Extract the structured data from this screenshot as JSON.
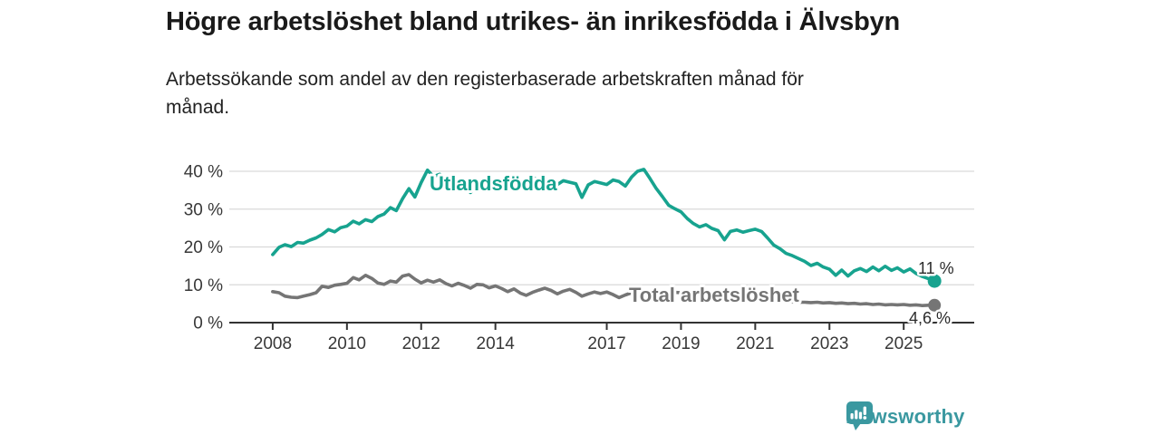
{
  "chart_data": {
    "type": "line",
    "title": "Högre arbetslöshet bland utrikes- än inrikesfödda i Älvsbyn",
    "subtitle_line1": "Arbetssökande som andel av den registerbaserade arbetskraften månad för",
    "subtitle_line2": "månad.",
    "xlabel": "",
    "ylabel": "",
    "grid": "horizontal",
    "grid_color": "#d9d9d9",
    "axis_color": "#333333",
    "xlim": [
      2006.83,
      2026.9
    ],
    "ylim": [
      0,
      40
    ],
    "x_ticks": [
      2008,
      2010,
      2012,
      2014,
      2017,
      2019,
      2021,
      2023,
      2025
    ],
    "y_ticks": [
      0,
      10,
      20,
      30,
      40
    ],
    "y_tick_suffix": " %",
    "series": [
      {
        "name": "Utlandsfödda",
        "color": "#17a38f",
        "end_label": "11 %",
        "end_value": 11,
        "points": [
          [
            2008.0,
            18.0
          ],
          [
            2008.17,
            19.9
          ],
          [
            2008.33,
            20.6
          ],
          [
            2008.5,
            20.1
          ],
          [
            2008.67,
            21.2
          ],
          [
            2008.83,
            21.0
          ],
          [
            2009.0,
            21.8
          ],
          [
            2009.17,
            22.4
          ],
          [
            2009.33,
            23.3
          ],
          [
            2009.5,
            24.6
          ],
          [
            2009.67,
            24.0
          ],
          [
            2009.83,
            25.1
          ],
          [
            2010.0,
            25.5
          ],
          [
            2010.17,
            26.8
          ],
          [
            2010.33,
            26.1
          ],
          [
            2010.5,
            27.2
          ],
          [
            2010.67,
            26.7
          ],
          [
            2010.83,
            28.0
          ],
          [
            2011.0,
            28.7
          ],
          [
            2011.17,
            30.4
          ],
          [
            2011.33,
            29.6
          ],
          [
            2011.5,
            32.8
          ],
          [
            2011.67,
            35.4
          ],
          [
            2011.83,
            33.2
          ],
          [
            2012.0,
            37.0
          ],
          [
            2012.17,
            40.3
          ],
          [
            2012.33,
            38.6
          ],
          [
            2012.5,
            39.2
          ],
          [
            2012.67,
            37.5
          ],
          [
            2012.83,
            38.2
          ],
          [
            2013.0,
            37.1
          ],
          [
            2013.17,
            35.9
          ],
          [
            2013.33,
            34.4
          ],
          [
            2013.5,
            36.2
          ],
          [
            2013.67,
            36.7
          ],
          [
            2013.83,
            35.9
          ],
          [
            2014.0,
            36.5
          ],
          [
            2014.17,
            35.7
          ],
          [
            2014.33,
            36.3
          ],
          [
            2014.5,
            35.9
          ],
          [
            2014.67,
            36.9
          ],
          [
            2014.83,
            37.9
          ],
          [
            2015.0,
            38.4
          ],
          [
            2015.17,
            37.7
          ],
          [
            2015.33,
            38.1
          ],
          [
            2015.5,
            37.3
          ],
          [
            2015.67,
            36.5
          ],
          [
            2015.83,
            37.5
          ],
          [
            2016.0,
            37.1
          ],
          [
            2016.17,
            36.7
          ],
          [
            2016.33,
            33.1
          ],
          [
            2016.5,
            36.4
          ],
          [
            2016.67,
            37.3
          ],
          [
            2016.83,
            36.9
          ],
          [
            2017.0,
            36.5
          ],
          [
            2017.17,
            37.7
          ],
          [
            2017.33,
            37.3
          ],
          [
            2017.5,
            36.1
          ],
          [
            2017.67,
            38.5
          ],
          [
            2017.83,
            40.0
          ],
          [
            2018.0,
            40.5
          ],
          [
            2018.17,
            38.0
          ],
          [
            2018.33,
            35.5
          ],
          [
            2018.5,
            33.3
          ],
          [
            2018.67,
            31.0
          ],
          [
            2018.83,
            30.1
          ],
          [
            2019.0,
            29.3
          ],
          [
            2019.17,
            27.5
          ],
          [
            2019.33,
            26.2
          ],
          [
            2019.5,
            25.3
          ],
          [
            2019.67,
            25.9
          ],
          [
            2019.83,
            24.9
          ],
          [
            2020.0,
            24.3
          ],
          [
            2020.17,
            21.9
          ],
          [
            2020.33,
            24.1
          ],
          [
            2020.5,
            24.5
          ],
          [
            2020.67,
            23.9
          ],
          [
            2020.83,
            24.3
          ],
          [
            2021.0,
            24.7
          ],
          [
            2021.17,
            24.1
          ],
          [
            2021.33,
            22.4
          ],
          [
            2021.5,
            20.5
          ],
          [
            2021.67,
            19.5
          ],
          [
            2021.83,
            18.3
          ],
          [
            2022.0,
            17.7
          ],
          [
            2022.17,
            16.9
          ],
          [
            2022.33,
            16.2
          ],
          [
            2022.5,
            15.1
          ],
          [
            2022.67,
            15.7
          ],
          [
            2022.83,
            14.7
          ],
          [
            2023.0,
            14.1
          ],
          [
            2023.17,
            12.5
          ],
          [
            2023.33,
            13.9
          ],
          [
            2023.5,
            12.3
          ],
          [
            2023.67,
            13.7
          ],
          [
            2023.83,
            14.3
          ],
          [
            2024.0,
            13.5
          ],
          [
            2024.17,
            14.7
          ],
          [
            2024.33,
            13.7
          ],
          [
            2024.5,
            14.9
          ],
          [
            2024.67,
            13.8
          ],
          [
            2024.83,
            14.5
          ],
          [
            2025.0,
            13.4
          ],
          [
            2025.17,
            14.2
          ],
          [
            2025.33,
            13.0
          ],
          [
            2025.5,
            12.2
          ],
          [
            2025.67,
            11.6
          ],
          [
            2025.83,
            11.0
          ]
        ]
      },
      {
        "name": "Total arbetslöshet",
        "color": "#757575",
        "end_label": "4,6 %",
        "end_value": 4.6,
        "points": [
          [
            2008.0,
            8.2
          ],
          [
            2008.17,
            7.9
          ],
          [
            2008.33,
            7.0
          ],
          [
            2008.5,
            6.7
          ],
          [
            2008.67,
            6.6
          ],
          [
            2008.83,
            7.0
          ],
          [
            2009.0,
            7.4
          ],
          [
            2009.17,
            7.9
          ],
          [
            2009.33,
            9.6
          ],
          [
            2009.5,
            9.3
          ],
          [
            2009.67,
            9.9
          ],
          [
            2009.83,
            10.1
          ],
          [
            2010.0,
            10.4
          ],
          [
            2010.17,
            11.9
          ],
          [
            2010.33,
            11.3
          ],
          [
            2010.5,
            12.5
          ],
          [
            2010.67,
            11.7
          ],
          [
            2010.83,
            10.5
          ],
          [
            2011.0,
            10.1
          ],
          [
            2011.17,
            11.0
          ],
          [
            2011.33,
            10.7
          ],
          [
            2011.5,
            12.3
          ],
          [
            2011.67,
            12.7
          ],
          [
            2011.83,
            11.5
          ],
          [
            2012.0,
            10.5
          ],
          [
            2012.17,
            11.2
          ],
          [
            2012.33,
            10.7
          ],
          [
            2012.5,
            11.3
          ],
          [
            2012.67,
            10.3
          ],
          [
            2012.83,
            9.7
          ],
          [
            2013.0,
            10.4
          ],
          [
            2013.17,
            9.8
          ],
          [
            2013.33,
            9.1
          ],
          [
            2013.5,
            10.1
          ],
          [
            2013.67,
            10.0
          ],
          [
            2013.83,
            9.2
          ],
          [
            2014.0,
            9.7
          ],
          [
            2014.17,
            9.0
          ],
          [
            2014.33,
            8.2
          ],
          [
            2014.5,
            8.9
          ],
          [
            2014.67,
            7.8
          ],
          [
            2014.83,
            7.2
          ],
          [
            2015.0,
            8.0
          ],
          [
            2015.17,
            8.6
          ],
          [
            2015.33,
            9.1
          ],
          [
            2015.5,
            8.5
          ],
          [
            2015.67,
            7.6
          ],
          [
            2015.83,
            8.3
          ],
          [
            2016.0,
            8.8
          ],
          [
            2016.17,
            8.0
          ],
          [
            2016.33,
            7.0
          ],
          [
            2016.5,
            7.6
          ],
          [
            2016.67,
            8.1
          ],
          [
            2016.83,
            7.7
          ],
          [
            2017.0,
            8.1
          ],
          [
            2017.17,
            7.4
          ],
          [
            2017.33,
            6.6
          ],
          [
            2017.5,
            7.3
          ],
          [
            2017.67,
            7.9
          ],
          [
            2017.83,
            8.3
          ],
          [
            2018.0,
            8.1
          ],
          [
            2018.17,
            8.4
          ],
          [
            2018.33,
            7.8
          ],
          [
            2018.5,
            8.1
          ],
          [
            2018.67,
            7.8
          ],
          [
            2018.83,
            8.0
          ],
          [
            2019.0,
            7.9
          ],
          [
            2019.17,
            7.7
          ],
          [
            2019.33,
            7.5
          ],
          [
            2019.5,
            7.3
          ],
          [
            2019.67,
            7.2
          ],
          [
            2019.83,
            7.0
          ],
          [
            2020.0,
            6.9
          ],
          [
            2020.17,
            6.8
          ],
          [
            2020.33,
            6.6
          ],
          [
            2020.5,
            6.5
          ],
          [
            2020.67,
            6.4
          ],
          [
            2020.83,
            6.2
          ],
          [
            2021.0,
            6.1
          ],
          [
            2021.17,
            6.0
          ],
          [
            2021.33,
            5.9
          ],
          [
            2021.5,
            5.8
          ],
          [
            2021.67,
            5.7
          ],
          [
            2021.83,
            5.6
          ],
          [
            2022.0,
            5.5
          ],
          [
            2022.17,
            5.4
          ],
          [
            2022.33,
            5.4
          ],
          [
            2022.5,
            5.3
          ],
          [
            2022.67,
            5.4
          ],
          [
            2022.83,
            5.2
          ],
          [
            2023.0,
            5.3
          ],
          [
            2023.17,
            5.1
          ],
          [
            2023.33,
            5.2
          ],
          [
            2023.5,
            5.0
          ],
          [
            2023.67,
            5.1
          ],
          [
            2023.83,
            4.9
          ],
          [
            2024.0,
            5.0
          ],
          [
            2024.17,
            4.8
          ],
          [
            2024.33,
            4.9
          ],
          [
            2024.5,
            4.7
          ],
          [
            2024.67,
            4.8
          ],
          [
            2024.83,
            4.7
          ],
          [
            2025.0,
            4.8
          ],
          [
            2025.17,
            4.6
          ],
          [
            2025.33,
            4.7
          ],
          [
            2025.5,
            4.5
          ],
          [
            2025.67,
            4.6
          ],
          [
            2025.83,
            4.6
          ]
        ]
      }
    ]
  },
  "logo": {
    "text": "Newsworthy",
    "icon": "bar-chart-speech-bubble-icon",
    "color": "#3a98a0"
  }
}
